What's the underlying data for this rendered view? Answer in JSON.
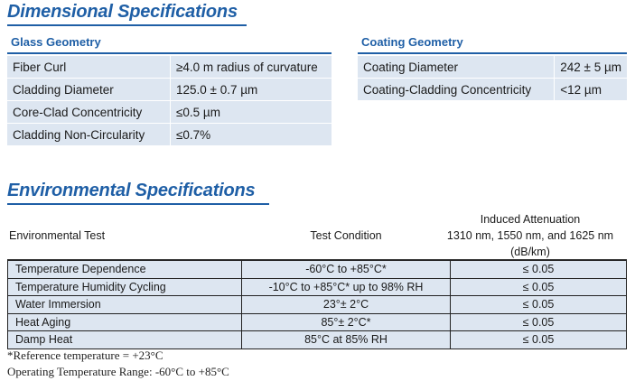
{
  "dimensional": {
    "title": "Dimensional Specifications",
    "glass": {
      "heading": "Glass Geometry",
      "rows": [
        {
          "label": "Fiber Curl",
          "value": "≥4.0 m radius of curvature"
        },
        {
          "label": "Cladding Diameter",
          "value": "125.0 ± 0.7 µm"
        },
        {
          "label": "Core-Clad Concentricity",
          "value": "≤0.5 µm"
        },
        {
          "label": "Cladding Non-Circularity",
          "value": "≤0.7%"
        }
      ]
    },
    "coating": {
      "heading": "Coating Geometry",
      "rows": [
        {
          "label": "Coating Diameter",
          "value": "242 ± 5 µm"
        },
        {
          "label": "Coating-Cladding Concentricity",
          "value": "<12 µm"
        }
      ]
    }
  },
  "environmental": {
    "title": "Environmental Specifications",
    "headers": {
      "test": "Environmental Test",
      "condition": "Test Condition",
      "attenuation_line1": "Induced Attenuation",
      "attenuation_line2": "1310 nm, 1550 nm, and 1625 nm",
      "attenuation_line3": "(dB/km)"
    },
    "rows": [
      {
        "test": "Temperature Dependence",
        "condition": "-60°C to +85°C*",
        "attenuation": "≤ 0.05"
      },
      {
        "test": "Temperature Humidity Cycling",
        "condition": "-10°C to +85°C* up to 98% RH",
        "attenuation": "≤ 0.05"
      },
      {
        "test": "Water Immersion",
        "condition": "23°± 2°C",
        "attenuation": "≤ 0.05"
      },
      {
        "test": "Heat Aging",
        "condition": "85°± 2°C*",
        "attenuation": "≤ 0.05"
      },
      {
        "test": "Damp Heat",
        "condition": "85°C at 85% RH",
        "attenuation": "≤ 0.05"
      }
    ]
  },
  "footnotes": {
    "reference": "*Reference temperature = +23°C",
    "operating": "Operating Temperature Range: -60°C to +85°C"
  },
  "colors": {
    "accent": "#1f5fa6",
    "row_fill": "#dde6f1"
  }
}
